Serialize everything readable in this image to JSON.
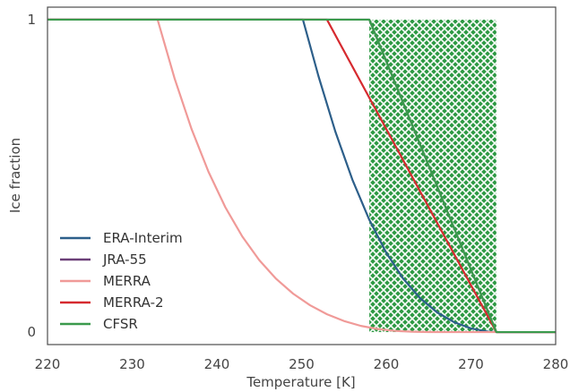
{
  "chart_data": {
    "type": "line",
    "title": "",
    "xlabel": "Temperature [K]",
    "ylabel": "Ice fraction",
    "xlim": [
      220,
      280
    ],
    "ylim": [
      -0.04,
      1.04
    ],
    "xticks": [
      220,
      230,
      240,
      250,
      260,
      270,
      280
    ],
    "yticks": [
      0,
      1
    ],
    "xtick_labels": [
      "220",
      "230",
      "240",
      "250",
      "260",
      "270",
      "280"
    ],
    "ytick_labels": [
      "0",
      "1"
    ],
    "grid": false,
    "legend_position": "lower-left",
    "shaded_region": {
      "x": [
        258,
        273
      ],
      "y": [
        0,
        1
      ],
      "color": "#2e9a44",
      "pattern": "crosshatch"
    },
    "series": [
      {
        "name": "ERA-Interim",
        "color": "#2d5f8a",
        "x": [
          220,
          250.16,
          252,
          254,
          256,
          258,
          260,
          262,
          264,
          266,
          268,
          270,
          272,
          273.16,
          280
        ],
        "y": [
          1,
          1,
          0.8187,
          0.6407,
          0.4877,
          0.3592,
          0.2539,
          0.1708,
          0.1083,
          0.0631,
          0.0317,
          0.0118,
          0.0014,
          0,
          0
        ]
      },
      {
        "name": "JRA-55",
        "color": "#6b3f78",
        "x": [
          220,
          258,
          273,
          280
        ],
        "y": [
          1,
          1,
          0,
          0
        ]
      },
      {
        "name": "MERRA",
        "color": "#f09a98",
        "x": [
          220,
          233,
          235,
          237,
          239,
          241,
          243,
          245,
          247,
          249,
          251,
          253,
          255,
          257,
          259,
          261,
          263,
          265,
          267,
          269,
          271,
          273,
          280
        ],
        "y": [
          1,
          1,
          0.8123,
          0.6506,
          0.5136,
          0.3994,
          0.3059,
          0.2304,
          0.1703,
          0.1229,
          0.0858,
          0.0571,
          0.0355,
          0.0198,
          0.0098,
          0.0039,
          0.0011,
          0.0002,
          0,
          0,
          0,
          0,
          0
        ]
      },
      {
        "name": "MERRA-2",
        "color": "#d62a2f",
        "x": [
          220,
          253,
          273,
          280
        ],
        "y": [
          1,
          1,
          0,
          0
        ]
      },
      {
        "name": "CFSR",
        "color": "#3a9a4c",
        "x": [
          220,
          258,
          273,
          280
        ],
        "y": [
          1,
          1,
          0,
          0
        ]
      }
    ]
  }
}
